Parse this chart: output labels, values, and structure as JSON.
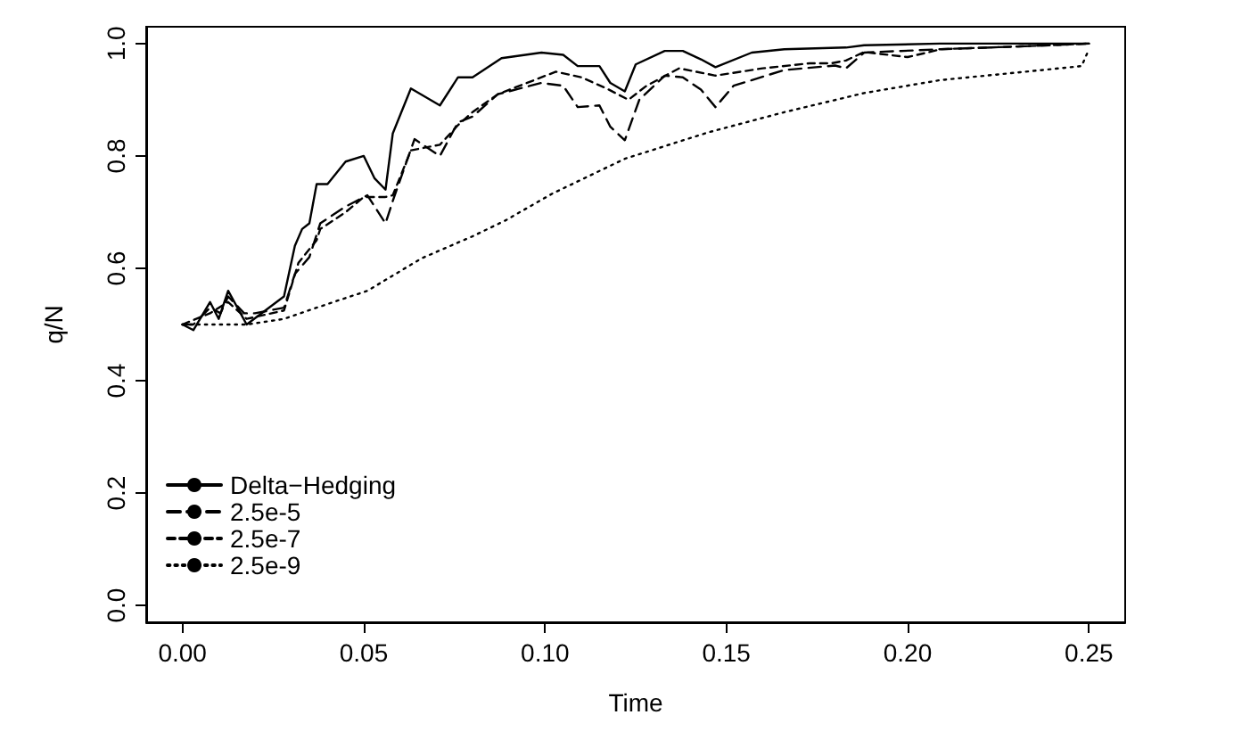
{
  "chart_data": {
    "type": "line",
    "xlabel": "Time",
    "ylabel": "q/N",
    "xlim": [
      -0.01,
      0.26
    ],
    "ylim": [
      -0.03,
      1.03
    ],
    "xticks": [
      {
        "value": 0,
        "label": "0.00"
      },
      {
        "value": 0.05,
        "label": "0.05"
      },
      {
        "value": 0.1,
        "label": "0.10"
      },
      {
        "value": 0.15,
        "label": "0.15"
      },
      {
        "value": 0.2,
        "label": "0.20"
      },
      {
        "value": 0.25,
        "label": "0.25"
      }
    ],
    "yticks": [
      {
        "value": 0,
        "label": "0.0"
      },
      {
        "value": 0.2,
        "label": "0.2"
      },
      {
        "value": 0.4,
        "label": "0.4"
      },
      {
        "value": 0.6,
        "label": "0.6"
      },
      {
        "value": 0.8,
        "label": "0.8"
      },
      {
        "value": 1,
        "label": "1.0"
      }
    ],
    "grid": false,
    "legend": "bottom left",
    "marker": "none",
    "series": [
      {
        "name": "Delta−Hedging",
        "color": "#000000",
        "line_style": "solid",
        "x": [
          0,
          0.003,
          0.0076,
          0.01,
          0.0126,
          0.0177,
          0.028,
          0.031,
          0.033,
          0.035,
          0.037,
          0.04,
          0.045,
          0.05,
          0.053,
          0.056,
          0.058,
          0.063,
          0.071,
          0.076,
          0.08,
          0.088,
          0.099,
          0.105,
          0.109,
          0.115,
          0.118,
          0.122,
          0.125,
          0.133,
          0.138,
          0.143,
          0.147,
          0.157,
          0.166,
          0.183,
          0.188,
          0.209,
          0.231,
          0.25
        ],
        "values": [
          0.5,
          0.49,
          0.54,
          0.51,
          0.56,
          0.5,
          0.55,
          0.64,
          0.67,
          0.68,
          0.75,
          0.75,
          0.79,
          0.8,
          0.76,
          0.74,
          0.84,
          0.92,
          0.89,
          0.94,
          0.94,
          0.974,
          0.984,
          0.98,
          0.96,
          0.96,
          0.93,
          0.915,
          0.963,
          0.987,
          0.987,
          0.972,
          0.958,
          0.984,
          0.99,
          0.993,
          0.997,
          1.0,
          1.0,
          1.0
        ]
      },
      {
        "name": "2.5e-5",
        "color": "#000000",
        "line_style": "dashed",
        "x": [
          0,
          0.003,
          0.0076,
          0.0105,
          0.0126,
          0.017,
          0.02,
          0.028,
          0.031,
          0.035,
          0.038,
          0.045,
          0.051,
          0.056,
          0.058,
          0.064,
          0.071,
          0.076,
          0.08,
          0.087,
          0.099,
          0.105,
          0.109,
          0.115,
          0.118,
          0.122,
          0.126,
          0.133,
          0.138,
          0.143,
          0.147,
          0.152,
          0.166,
          0.18,
          0.183,
          0.188,
          0.209,
          0.231,
          0.25
        ],
        "values": [
          0.5,
          0.5,
          0.53,
          0.52,
          0.55,
          0.52,
          0.52,
          0.53,
          0.59,
          0.62,
          0.68,
          0.71,
          0.73,
          0.68,
          0.72,
          0.83,
          0.8,
          0.86,
          0.87,
          0.91,
          0.93,
          0.925,
          0.887,
          0.89,
          0.852,
          0.828,
          0.9,
          0.943,
          0.94,
          0.918,
          0.887,
          0.925,
          0.953,
          0.961,
          0.956,
          0.984,
          0.99,
          0.995,
          1.0
        ]
      },
      {
        "name": "2.5e-7",
        "color": "#000000",
        "line_style": "dotted-dash",
        "x": [
          0,
          0.0076,
          0.0126,
          0.0177,
          0.028,
          0.032,
          0.037,
          0.038,
          0.045,
          0.05,
          0.056,
          0.058,
          0.063,
          0.071,
          0.076,
          0.08,
          0.087,
          0.103,
          0.11,
          0.117,
          0.123,
          0.128,
          0.137,
          0.147,
          0.16,
          0.173,
          0.179,
          0.183,
          0.188,
          0.2,
          0.206,
          0.209,
          0.231,
          0.25
        ],
        "values": [
          0.5,
          0.52,
          0.54,
          0.51,
          0.525,
          0.61,
          0.65,
          0.67,
          0.7,
          0.727,
          0.727,
          0.73,
          0.81,
          0.82,
          0.855,
          0.878,
          0.91,
          0.95,
          0.94,
          0.92,
          0.9,
          0.925,
          0.956,
          0.943,
          0.956,
          0.965,
          0.965,
          0.97,
          0.985,
          0.976,
          0.985,
          0.99,
          0.995,
          1.0
        ]
      },
      {
        "name": "2.5e-9",
        "color": "#000000",
        "line_style": "dotted",
        "x": [
          0,
          0.0177,
          0.028,
          0.037,
          0.051,
          0.066,
          0.08,
          0.089,
          0.102,
          0.122,
          0.145,
          0.166,
          0.188,
          0.209,
          0.231,
          0.248,
          0.25
        ],
        "values": [
          0.5,
          0.5,
          0.51,
          0.53,
          0.56,
          0.618,
          0.657,
          0.685,
          0.733,
          0.795,
          0.842,
          0.878,
          0.912,
          0.935,
          0.949,
          0.96,
          0.99
        ]
      }
    ]
  }
}
